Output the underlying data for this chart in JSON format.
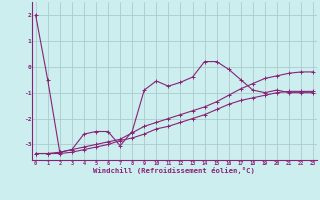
{
  "title": "",
  "xlabel": "Windchill (Refroidissement éolien,°C)",
  "background_color": "#cceeee",
  "grid_color": "#aacccc",
  "line_color": "#882277",
  "x_ticks": [
    0,
    1,
    2,
    3,
    4,
    5,
    6,
    7,
    8,
    9,
    10,
    11,
    12,
    13,
    14,
    15,
    16,
    17,
    18,
    19,
    20,
    21,
    22,
    23
  ],
  "y_ticks": [
    -3,
    -2,
    -1,
    0,
    1,
    2
  ],
  "xlim": [
    -0.3,
    23.3
  ],
  "ylim": [
    -3.6,
    2.5
  ],
  "series1_x": [
    0,
    1,
    2,
    3,
    4,
    5,
    6,
    7,
    8,
    9,
    10,
    11,
    12,
    13,
    14,
    15,
    16,
    17,
    18,
    19,
    20,
    21,
    22,
    23
  ],
  "series1_y": [
    2.0,
    -0.5,
    -3.3,
    -3.2,
    -2.6,
    -2.5,
    -2.5,
    -3.05,
    -2.5,
    -0.9,
    -0.55,
    -0.75,
    -0.6,
    -0.4,
    0.2,
    0.2,
    -0.1,
    -0.5,
    -0.9,
    -1.0,
    -0.9,
    -1.0,
    -1.0,
    -1.0
  ],
  "series2_x": [
    0,
    1,
    2,
    3,
    4,
    5,
    6,
    7,
    8,
    9,
    10,
    11,
    12,
    13,
    14,
    15,
    16,
    17,
    18,
    19,
    20,
    21,
    22,
    23
  ],
  "series2_y": [
    -3.35,
    -3.35,
    -3.35,
    -3.3,
    -3.2,
    -3.1,
    -3.0,
    -2.85,
    -2.75,
    -2.6,
    -2.4,
    -2.3,
    -2.15,
    -2.0,
    -1.85,
    -1.65,
    -1.45,
    -1.3,
    -1.2,
    -1.1,
    -1.0,
    -0.95,
    -0.95,
    -0.95
  ],
  "series3_x": [
    0,
    1,
    2,
    3,
    4,
    5,
    6,
    7,
    8,
    9,
    10,
    11,
    12,
    13,
    14,
    15,
    16,
    17,
    18,
    19,
    20,
    21,
    22,
    23
  ],
  "series3_y": [
    -3.35,
    -3.35,
    -3.3,
    -3.2,
    -3.1,
    -3.0,
    -2.9,
    -2.8,
    -2.55,
    -2.3,
    -2.15,
    -2.0,
    -1.85,
    -1.7,
    -1.55,
    -1.35,
    -1.1,
    -0.85,
    -0.65,
    -0.45,
    -0.35,
    -0.25,
    -0.2,
    -0.2
  ]
}
